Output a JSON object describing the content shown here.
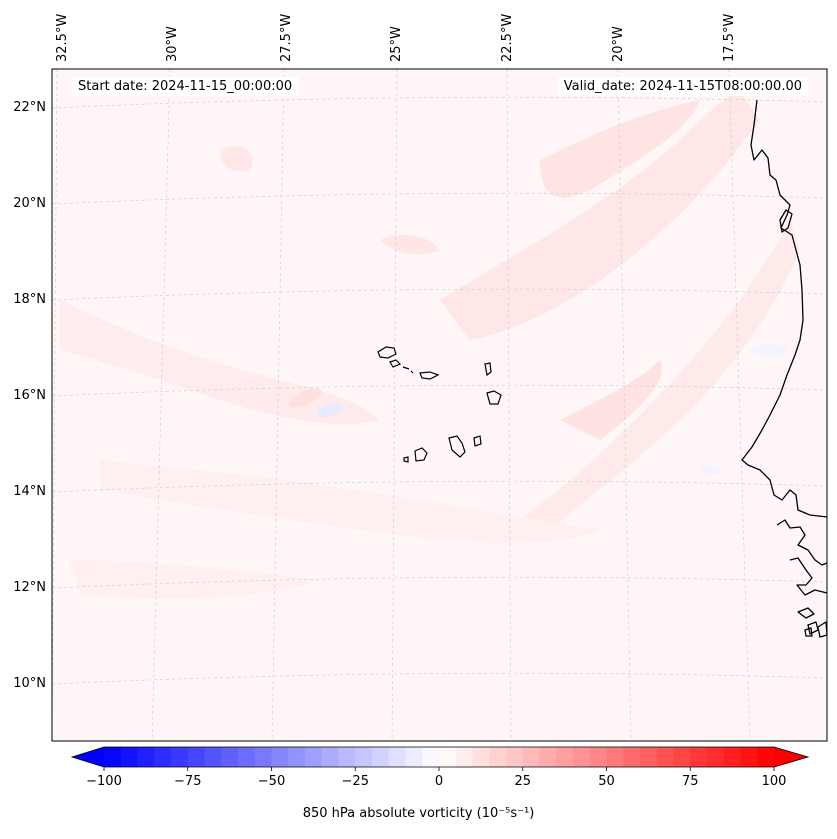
{
  "map": {
    "start_label": "Start date: 2024-11-15_00:00:00",
    "valid_label": "Valid_date: 2024-11-15T08:00:00.00",
    "projection": "lambert-conformal",
    "gridlines": "dashed-grey",
    "lon_labels": [
      "32.5°W",
      "30°W",
      "27.5°W",
      "25°W",
      "22.5°W",
      "20°W",
      "17.5°W"
    ],
    "lat_labels": [
      "22°N",
      "20°N",
      "18°N",
      "16°N",
      "14°N",
      "12°N",
      "10°N"
    ],
    "coastline_color": "#000000",
    "features": [
      "cape-verde-islands",
      "west-africa-coastline"
    ]
  },
  "colorbar": {
    "ticks": [
      "−100",
      "−75",
      "−50",
      "−25",
      "0",
      "25",
      "50",
      "75",
      "100"
    ],
    "label": "850 hPa absolute vorticity (10⁻⁵s⁻¹)",
    "min": -100,
    "max": 100,
    "step": 5,
    "extend": "both",
    "cmap": "bwr",
    "low_color": "#0000ff",
    "mid_color": "#ffffff",
    "high_color": "#ff0000"
  }
}
